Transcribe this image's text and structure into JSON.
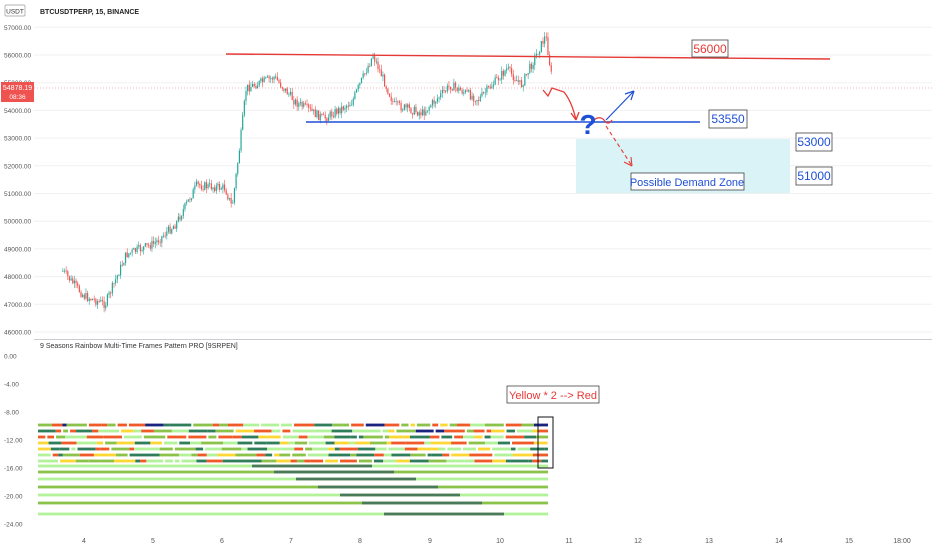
{
  "header": {
    "currency_badge": "USDT",
    "symbol_line": "BTCUSDTPERP, 15, BINANCE"
  },
  "price_panel": {
    "y_ticks": [
      "57000.00",
      "56000.00",
      "55000.00",
      "54000.00",
      "53000.00",
      "52000.00",
      "51000.00",
      "50000.00",
      "49000.00",
      "48000.00",
      "47000.00",
      "46000.00"
    ],
    "current_price": "54878.19",
    "countdown": "08:36",
    "price_color": "#ef5350"
  },
  "x_axis": {
    "labels": [
      "4",
      "5",
      "6",
      "7",
      "8",
      "9",
      "10",
      "11",
      "12",
      "13",
      "14",
      "15",
      "18:00"
    ]
  },
  "annotations": {
    "resistance_label": "56000",
    "support_label": "53550",
    "zone_top_label": "53000",
    "zone_bottom_label": "51000",
    "zone_label": "Possible Demand Zone",
    "question_mark": "?",
    "indicator_note": "Yellow * 2 --> Red",
    "resistance_color": "#e53935",
    "support_color": "#1e4fd6",
    "zone_color": "#d9f3f7"
  },
  "indicator_panel": {
    "title": "9 Seasons Rainbow Multi-Time Frames Pattern PRO [9SRPEN]",
    "y_ticks": [
      "0.00",
      "-4.00",
      "-8.00",
      "-12.00",
      "-16.00",
      "-20.00",
      "-24.00"
    ]
  },
  "chart_data": [
    {
      "type": "candlestick",
      "title": "BTCUSDTPERP, 15, BINANCE",
      "x_ticks": [
        "4",
        "5",
        "6",
        "7",
        "8",
        "9",
        "10",
        "11",
        "12",
        "13",
        "14",
        "15",
        "18:00"
      ],
      "ylim": [
        46000,
        57000
      ],
      "approx_close_path": [
        {
          "x": "3.7",
          "y": 48200
        },
        {
          "x": "4",
          "y": 47300
        },
        {
          "x": "4.3",
          "y": 47000
        },
        {
          "x": "4.6",
          "y": 48800
        },
        {
          "x": "5",
          "y": 49200
        },
        {
          "x": "5.3",
          "y": 49900
        },
        {
          "x": "5.6",
          "y": 51300
        },
        {
          "x": "6",
          "y": 51200
        },
        {
          "x": "6.1",
          "y": 50500
        },
        {
          "x": "6.2",
          "y": 52500
        },
        {
          "x": "6.3",
          "y": 54800
        },
        {
          "x": "6.7",
          "y": 55200
        },
        {
          "x": "7",
          "y": 54300
        },
        {
          "x": "7.4",
          "y": 53700
        },
        {
          "x": "7.8",
          "y": 54300
        },
        {
          "x": "8.1",
          "y": 56000
        },
        {
          "x": "8.4",
          "y": 54200
        },
        {
          "x": "8.8",
          "y": 53900
        },
        {
          "x": "9.2",
          "y": 54900
        },
        {
          "x": "9.6",
          "y": 54400
        },
        {
          "x": "10",
          "y": 55500
        },
        {
          "x": "10.2",
          "y": 54900
        },
        {
          "x": "10.55",
          "y": 56700
        },
        {
          "x": "10.65",
          "y": 54878
        }
      ],
      "levels": [
        {
          "label": "56000",
          "value": 56000
        },
        {
          "label": "53550",
          "value": 53550
        }
      ],
      "zone": {
        "label": "Possible Demand Zone",
        "from": 51000,
        "to": 53000
      }
    },
    {
      "type": "heatmap",
      "title": "9 Seasons Rainbow Multi-Time Frames Pattern PRO [9SRPEN]",
      "ylim": [
        -25,
        0
      ],
      "rows": [
        -10,
        -11,
        -12,
        -13,
        -14,
        -15,
        -16,
        -17,
        -18,
        -19,
        -20,
        -21,
        -22,
        -23
      ],
      "colors": [
        "#f05a28",
        "#fdd835",
        "#8bc34a",
        "#b2f29b",
        "#4a7a5a",
        "#2e7d5b",
        "#1a237e",
        "#c62828"
      ]
    }
  ]
}
